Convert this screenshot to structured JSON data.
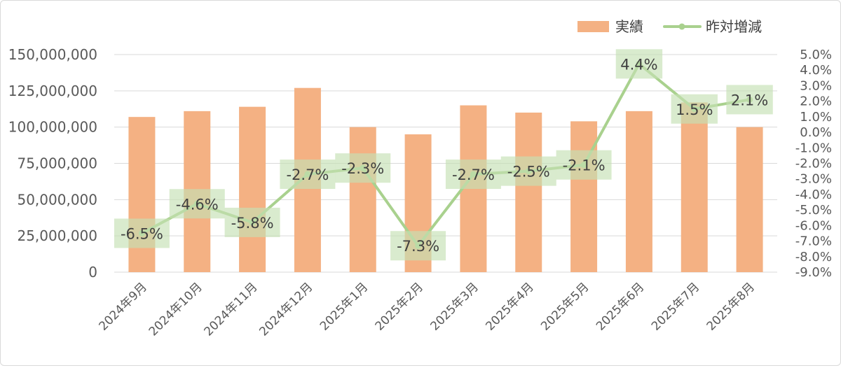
{
  "chart_data": {
    "type": "bar+line",
    "categories": [
      "2024年9月",
      "2024年10月",
      "2024年11月",
      "2024年12月",
      "2025年1月",
      "2025年2月",
      "2025年3月",
      "2025年4月",
      "2025年5月",
      "2025年6月",
      "2025年7月",
      "2025年8月"
    ],
    "series": [
      {
        "name": "実績",
        "type": "bar",
        "axis": "left",
        "color": "#f4b183",
        "values": [
          107000000,
          111000000,
          114000000,
          127000000,
          100000000,
          95000000,
          115000000,
          110000000,
          104000000,
          111000000,
          117000000,
          100000000
        ]
      },
      {
        "name": "昨対増減",
        "type": "line",
        "axis": "right",
        "color": "#a9d18e",
        "values": [
          -6.5,
          -4.6,
          -5.8,
          -2.7,
          -2.3,
          -7.3,
          -2.7,
          -2.5,
          -2.1,
          4.4,
          1.5,
          2.1
        ],
        "data_labels": [
          "-6.5%",
          "-4.6%",
          "-5.8%",
          "-2.7%",
          "-2.3%",
          "-7.3%",
          "-2.7%",
          "-2.5%",
          "-2.1%",
          "4.4%",
          "1.5%",
          "2.1%"
        ]
      }
    ],
    "y_left": {
      "min": 0,
      "max": 150000000,
      "tick_values": [
        0,
        25000000,
        50000000,
        75000000,
        100000000,
        125000000,
        150000000
      ],
      "tick_labels": [
        "0",
        "25,000,000",
        "50,000,000",
        "75,000,000",
        "100,000,000",
        "125,000,000",
        "150,000,000"
      ]
    },
    "y_right": {
      "min": -9.0,
      "max": 5.0,
      "tick_values": [
        5,
        4,
        3,
        2,
        1,
        0,
        -1,
        -2,
        -3,
        -4,
        -5,
        -6,
        -7,
        -8,
        -9
      ],
      "tick_labels": [
        "5.0%",
        "4.0%",
        "3.0%",
        "2.0%",
        "1.0%",
        "0.0%",
        "-1.0%",
        "-2.0%",
        "-3.0%",
        "-4.0%",
        "-5.0%",
        "-6.0%",
        "-7.0%",
        "-8.0%",
        "-9.0%"
      ]
    },
    "grid": true,
    "legend_position": "top-right",
    "title": "",
    "xlabel": "",
    "ylabel": ""
  }
}
